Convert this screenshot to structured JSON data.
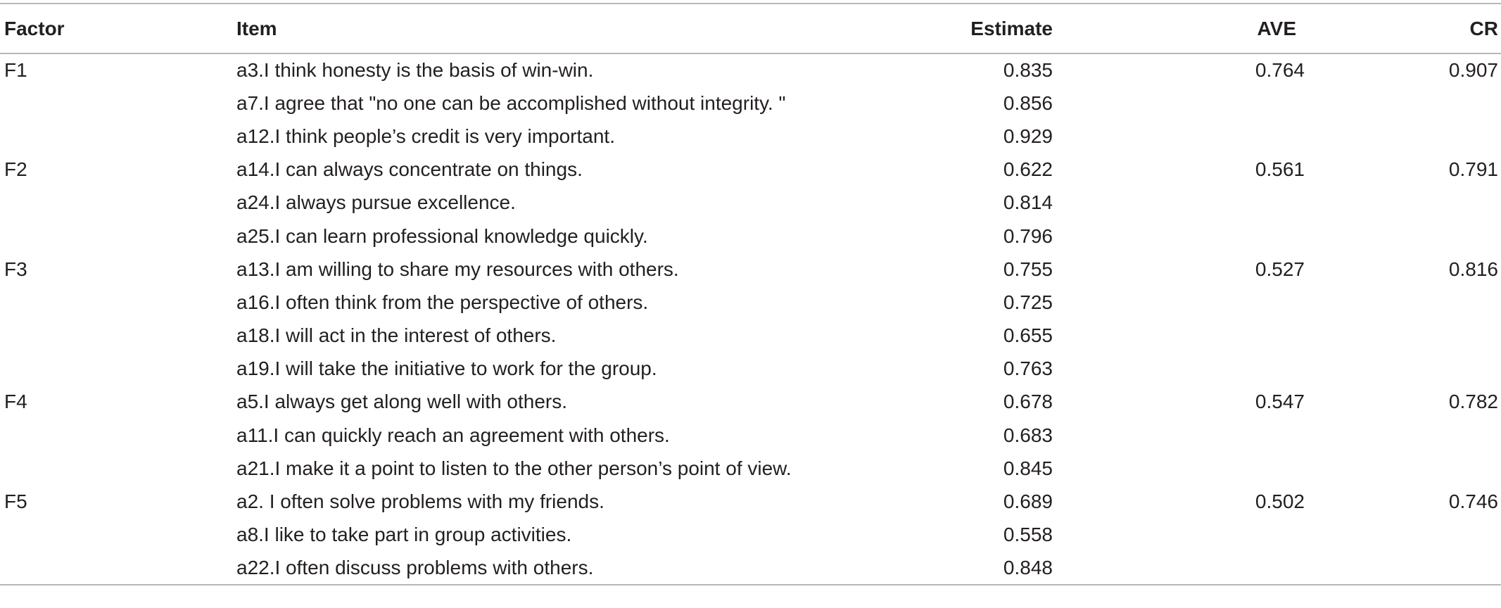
{
  "table": {
    "headers": {
      "factor": "Factor",
      "item": "Item",
      "estimate": "Estimate",
      "ave": "AVE",
      "cr": "CR"
    },
    "rows": [
      {
        "factor": "F1",
        "item": "a3.I think honesty is the basis of win-win.",
        "estimate": "0.835",
        "ave": "0.764",
        "cr": "0.907"
      },
      {
        "factor": "",
        "item": "a7.I agree that \"no one can be accomplished without integrity. \"",
        "estimate": "0.856",
        "ave": "",
        "cr": ""
      },
      {
        "factor": "",
        "item": "a12.I think people’s credit is very important.",
        "estimate": "0.929",
        "ave": "",
        "cr": ""
      },
      {
        "factor": "F2",
        "item": "a14.I can always concentrate on things.",
        "estimate": "0.622",
        "ave": "0.561",
        "cr": "0.791"
      },
      {
        "factor": "",
        "item": "a24.I always pursue excellence.",
        "estimate": "0.814",
        "ave": "",
        "cr": ""
      },
      {
        "factor": "",
        "item": "a25.I can learn professional knowledge quickly.",
        "estimate": "0.796",
        "ave": "",
        "cr": ""
      },
      {
        "factor": "F3",
        "item": "a13.I am willing to share my resources with others.",
        "estimate": "0.755",
        "ave": "0.527",
        "cr": "0.816"
      },
      {
        "factor": "",
        "item": "a16.I often think from the perspective of others.",
        "estimate": "0.725",
        "ave": "",
        "cr": ""
      },
      {
        "factor": "",
        "item": "a18.I will act in the interest of others.",
        "estimate": "0.655",
        "ave": "",
        "cr": ""
      },
      {
        "factor": "",
        "item": "a19.I will take the initiative to work for the group.",
        "estimate": "0.763",
        "ave": "",
        "cr": ""
      },
      {
        "factor": "F4",
        "item": "a5.I always get along well with others.",
        "estimate": "0.678",
        "ave": "0.547",
        "cr": "0.782"
      },
      {
        "factor": "",
        "item": "a11.I can quickly reach an agreement with others.",
        "estimate": "0.683",
        "ave": "",
        "cr": ""
      },
      {
        "factor": "",
        "item": "a21.I make it a point to listen to the other person’s point of view.",
        "estimate": "0.845",
        "ave": "",
        "cr": ""
      },
      {
        "factor": "F5",
        "item": "a2. I often solve problems with my friends.",
        "estimate": "0.689",
        "ave": "0.502",
        "cr": "0.746"
      },
      {
        "factor": "",
        "item": "a8.I like to take part in group activities.",
        "estimate": "0.558",
        "ave": "",
        "cr": ""
      },
      {
        "factor": "",
        "item": "a22.I often discuss problems with others.",
        "estimate": "0.848",
        "ave": "",
        "cr": ""
      }
    ]
  },
  "colors": {
    "text": "#231f20",
    "rule": "#b7b7b7",
    "background": "#ffffff"
  }
}
